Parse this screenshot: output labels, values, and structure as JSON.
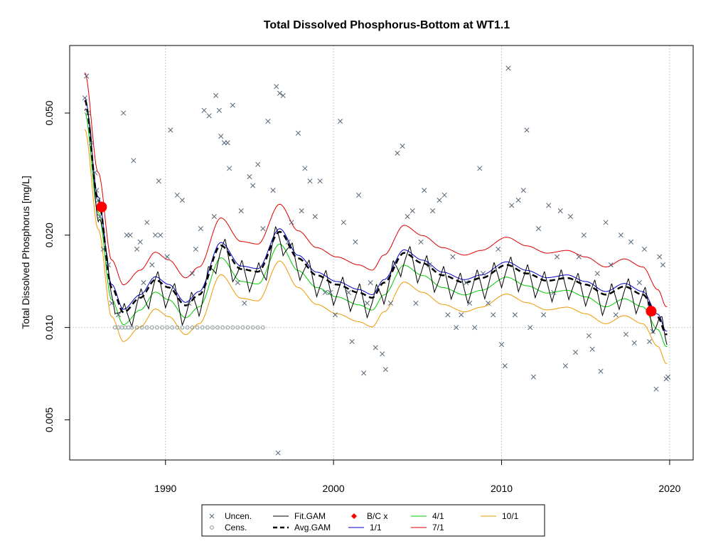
{
  "chart_data": {
    "type": "line",
    "title": "Total Dissolved Phosphorus-Bottom at WT1.1",
    "xlabel": "",
    "ylabel": "Total Dissolved Phosphorus [mg/L]",
    "y_scale": "log",
    "xlim": [
      1984.3,
      2021.4
    ],
    "ylim": [
      0.0037,
      0.083
    ],
    "x_ticks": [
      "1990",
      "2000",
      "2010",
      "2020"
    ],
    "y_ticks": [
      "0.005",
      "0.010",
      "0.020",
      "0.050"
    ],
    "grid": "dotted vertical at year ticks; dotted horizontal at 0.010",
    "legend": {
      "position": "bottom-center, below plot",
      "entries": [
        {
          "label": "Uncen.",
          "symbol": "x",
          "color": "#556677"
        },
        {
          "label": "Cens.",
          "symbol": "o",
          "color": "#889999"
        },
        {
          "label": "Fit.GAM",
          "symbol": "line",
          "color": "#000000"
        },
        {
          "label": "Avg.GAM",
          "symbol": "dashed",
          "color": "#000000"
        },
        {
          "label": "B/C x",
          "symbol": "diamond",
          "color": "#ff0000"
        },
        {
          "label": "1/1",
          "symbol": "line",
          "color": "#0000cc"
        },
        {
          "label": "4/1",
          "symbol": "line",
          "color": "#00cc00"
        },
        {
          "label": "7/1",
          "symbol": "line",
          "color": "#dd0000"
        },
        {
          "label": "10/1",
          "symbol": "line",
          "color": "#ee9900"
        }
      ]
    },
    "bc_points": [
      {
        "x": 1986.2,
        "y": 0.0247
      },
      {
        "x": 2018.9,
        "y": 0.0113
      }
    ],
    "uncensored": [
      [
        1985.2,
        0.056
      ],
      [
        1985.3,
        0.066
      ],
      [
        1985.4,
        0.05
      ],
      [
        1985.6,
        0.04
      ],
      [
        1985.8,
        0.032
      ],
      [
        1985.9,
        0.028
      ],
      [
        1986.0,
        0.026
      ],
      [
        1986.1,
        0.023
      ],
      [
        1986.3,
        0.018
      ],
      [
        1986.6,
        0.016
      ],
      [
        1986.8,
        0.012
      ],
      [
        1987.2,
        0.011
      ],
      [
        1987.5,
        0.05
      ],
      [
        1987.7,
        0.02
      ],
      [
        1987.9,
        0.02
      ],
      [
        1988.1,
        0.035
      ],
      [
        1988.3,
        0.018
      ],
      [
        1988.5,
        0.019
      ],
      [
        1988.7,
        0.014
      ],
      [
        1988.9,
        0.022
      ],
      [
        1989.2,
        0.016
      ],
      [
        1989.4,
        0.02
      ],
      [
        1989.6,
        0.03
      ],
      [
        1989.7,
        0.02
      ],
      [
        1990.1,
        0.017
      ],
      [
        1990.3,
        0.044
      ],
      [
        1990.7,
        0.027
      ],
      [
        1991.0,
        0.026
      ],
      [
        1991.4,
        0.012
      ],
      [
        1991.6,
        0.015
      ],
      [
        1991.8,
        0.018
      ],
      [
        1992.1,
        0.021
      ],
      [
        1992.3,
        0.051
      ],
      [
        1992.6,
        0.049
      ],
      [
        1992.9,
        0.023
      ],
      [
        1993.0,
        0.057
      ],
      [
        1993.2,
        0.051
      ],
      [
        1993.3,
        0.042
      ],
      [
        1993.5,
        0.04
      ],
      [
        1993.7,
        0.04
      ],
      [
        1993.8,
        0.033
      ],
      [
        1994.0,
        0.053
      ],
      [
        1994.3,
        0.014
      ],
      [
        1994.5,
        0.024
      ],
      [
        1994.7,
        0.012
      ],
      [
        1995.0,
        0.031
      ],
      [
        1995.2,
        0.029
      ],
      [
        1995.5,
        0.034
      ],
      [
        1995.8,
        0.021
      ],
      [
        1996.1,
        0.047
      ],
      [
        1996.4,
        0.028
      ],
      [
        1996.6,
        0.061
      ],
      [
        1996.8,
        0.058
      ],
      [
        1997.0,
        0.057
      ],
      [
        1997.3,
        0.019
      ],
      [
        1997.5,
        0.022
      ],
      [
        1997.9,
        0.043
      ],
      [
        1998.1,
        0.024
      ],
      [
        1998.3,
        0.033
      ],
      [
        1998.6,
        0.03
      ],
      [
        1998.9,
        0.023
      ],
      [
        1999.2,
        0.03
      ],
      [
        1999.5,
        0.013
      ],
      [
        1999.8,
        0.013
      ],
      [
        2000.1,
        0.011
      ],
      [
        2000.4,
        0.047
      ],
      [
        2000.6,
        0.022
      ],
      [
        2000.9,
        0.013
      ],
      [
        2001.1,
        0.009
      ],
      [
        2001.3,
        0.019
      ],
      [
        2001.5,
        0.027
      ],
      [
        2001.8,
        0.0071
      ],
      [
        2002.0,
        0.012
      ],
      [
        2002.2,
        0.014
      ],
      [
        2002.5,
        0.0086
      ],
      [
        2002.9,
        0.0082
      ],
      [
        2003.1,
        0.0073
      ],
      [
        2003.4,
        0.012
      ],
      [
        2003.8,
        0.037
      ],
      [
        2004.1,
        0.039
      ],
      [
        2004.4,
        0.023
      ],
      [
        2004.7,
        0.024
      ],
      [
        2004.9,
        0.012
      ],
      [
        2005.2,
        0.019
      ],
      [
        2005.4,
        0.028
      ],
      [
        2005.7,
        0.016
      ],
      [
        2005.9,
        0.024
      ],
      [
        2006.3,
        0.026
      ],
      [
        2006.6,
        0.027
      ],
      [
        2006.8,
        0.011
      ],
      [
        2007.1,
        0.017
      ],
      [
        2007.3,
        0.01
      ],
      [
        2007.6,
        0.011
      ],
      [
        2007.9,
        0.014
      ],
      [
        2008.1,
        0.012
      ],
      [
        2008.4,
        0.01
      ],
      [
        2008.7,
        0.033
      ],
      [
        2008.9,
        0.015
      ],
      [
        2009.2,
        0.012
      ],
      [
        2009.5,
        0.011
      ],
      [
        2009.8,
        0.018
      ],
      [
        2010.0,
        0.0088
      ],
      [
        2010.2,
        0.0075
      ],
      [
        2010.4,
        0.07
      ],
      [
        2010.6,
        0.025
      ],
      [
        2010.8,
        0.011
      ],
      [
        2011.0,
        0.026
      ],
      [
        2011.3,
        0.028
      ],
      [
        2011.5,
        0.044
      ],
      [
        2011.7,
        0.01
      ],
      [
        2011.9,
        0.0069
      ],
      [
        2012.2,
        0.021
      ],
      [
        2012.5,
        0.011
      ],
      [
        2012.8,
        0.025
      ],
      [
        2013.1,
        0.013
      ],
      [
        2013.3,
        0.017
      ],
      [
        2013.5,
        0.024
      ],
      [
        2013.8,
        0.0075
      ],
      [
        2014.1,
        0.023
      ],
      [
        2014.4,
        0.0083
      ],
      [
        2014.6,
        0.017
      ],
      [
        2014.9,
        0.02
      ],
      [
        2015.2,
        0.0094
      ],
      [
        2015.4,
        0.0085
      ],
      [
        2015.7,
        0.015
      ],
      [
        2015.9,
        0.0072
      ],
      [
        2016.2,
        0.022
      ],
      [
        2016.5,
        0.016
      ],
      [
        2016.8,
        0.011
      ],
      [
        2017.1,
        0.02
      ],
      [
        2017.4,
        0.0095
      ],
      [
        2017.7,
        0.019
      ],
      [
        2017.9,
        0.0089
      ],
      [
        2018.2,
        0.014
      ],
      [
        2018.5,
        0.018
      ],
      [
        2018.8,
        0.009
      ],
      [
        2019.0,
        0.0097
      ],
      [
        2019.2,
        0.0063
      ],
      [
        2019.4,
        0.017
      ],
      [
        2019.6,
        0.016
      ],
      [
        2019.8,
        0.0068
      ],
      [
        2019.9,
        0.0069
      ],
      [
        1996.7,
        0.0039
      ]
    ],
    "censored": [
      [
        1987.0,
        0.01
      ],
      [
        1987.2,
        0.01
      ],
      [
        1987.4,
        0.01
      ],
      [
        1987.6,
        0.01
      ],
      [
        1987.8,
        0.01
      ],
      [
        1988.0,
        0.01
      ],
      [
        1988.3,
        0.01
      ],
      [
        1988.6,
        0.01
      ],
      [
        1988.9,
        0.01
      ],
      [
        1989.2,
        0.01
      ],
      [
        1989.5,
        0.01
      ],
      [
        1989.8,
        0.01
      ],
      [
        1990.1,
        0.01
      ],
      [
        1990.4,
        0.01
      ],
      [
        1990.7,
        0.01
      ],
      [
        1991.0,
        0.01
      ],
      [
        1991.3,
        0.01
      ],
      [
        1991.6,
        0.01
      ],
      [
        1991.9,
        0.01
      ],
      [
        1992.2,
        0.01
      ],
      [
        1992.5,
        0.01
      ],
      [
        1992.8,
        0.01
      ],
      [
        1993.1,
        0.01
      ],
      [
        1993.4,
        0.01
      ],
      [
        1993.7,
        0.01
      ],
      [
        1994.0,
        0.01
      ],
      [
        1994.3,
        0.01
      ],
      [
        1994.6,
        0.01
      ],
      [
        1994.9,
        0.01
      ],
      [
        1995.2,
        0.01
      ],
      [
        1995.5,
        0.01
      ],
      [
        1995.8,
        0.01
      ]
    ]
  }
}
